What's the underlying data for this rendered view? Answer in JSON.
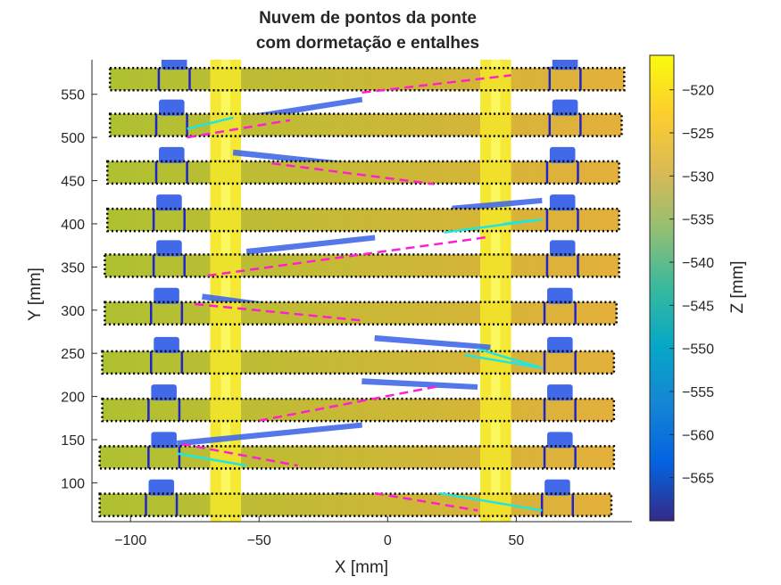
{
  "chart_data": {
    "type": "scatter",
    "title_lines": [
      "Nuvem de pontos da ponte",
      "com dormetação e entalhes"
    ],
    "xlabel": "X  [mm]",
    "ylabel": "Y  [mm]",
    "xlim": [
      -115,
      95
    ],
    "ylim": [
      55,
      590
    ],
    "xticks": [
      -100,
      -50,
      0,
      50
    ],
    "yticks": [
      100,
      150,
      200,
      250,
      300,
      350,
      400,
      450,
      500,
      550
    ],
    "colorbar": {
      "label": "Z  [mm]",
      "range": [
        -570,
        -516
      ],
      "ticks": [
        -520,
        -525,
        -530,
        -535,
        -540,
        -545,
        -550,
        -555,
        -560,
        -565
      ],
      "colormap": [
        "#352a87",
        "#0363e1",
        "#1485d4",
        "#06a7c6",
        "#38b99e",
        "#92bf73",
        "#d9ba56",
        "#fcce2e",
        "#f9fb0e"
      ]
    },
    "colors": {
      "sleeper_low": "#aec131",
      "sleeper_high": "#e3b03b",
      "rail": "#f4e82a",
      "notch": "#4169e8",
      "notch_line": "#1f25c8",
      "sleeper_outline": "#000000",
      "dashed_line": "#ff1fd2",
      "cyan_line": "#1ee6e0"
    },
    "sleepers": [
      {
        "y": 75,
        "x0": -112,
        "x1": 87,
        "notch_left": [
          -94,
          -82
        ],
        "notch_right": [
          60,
          72
        ]
      },
      {
        "y": 130,
        "x0": -112,
        "x1": 88,
        "notch_left": [
          -93,
          -81
        ],
        "notch_right": [
          61,
          73
        ]
      },
      {
        "y": 185,
        "x0": -111,
        "x1": 88,
        "notch_left": [
          -93,
          -81
        ],
        "notch_right": [
          61,
          73
        ]
      },
      {
        "y": 240,
        "x0": -111,
        "x1": 88,
        "notch_left": [
          -92,
          -80
        ],
        "notch_right": [
          61,
          73
        ]
      },
      {
        "y": 297,
        "x0": -110,
        "x1": 89,
        "notch_left": [
          -92,
          -80
        ],
        "notch_right": [
          61,
          73
        ]
      },
      {
        "y": 352,
        "x0": -110,
        "x1": 90,
        "notch_left": [
          -91,
          -79
        ],
        "notch_right": [
          62,
          74
        ]
      },
      {
        "y": 405,
        "x0": -109,
        "x1": 90,
        "notch_left": [
          -91,
          -79
        ],
        "notch_right": [
          62,
          74
        ]
      },
      {
        "y": 460,
        "x0": -109,
        "x1": 90,
        "notch_left": [
          -90,
          -78
        ],
        "notch_right": [
          62,
          74
        ]
      },
      {
        "y": 515,
        "x0": -108,
        "x1": 91,
        "notch_left": [
          -90,
          -78
        ],
        "notch_right": [
          63,
          75
        ]
      },
      {
        "y": 568,
        "x0": -108,
        "x1": 92,
        "notch_left": [
          -89,
          -77
        ],
        "notch_right": [
          63,
          75
        ]
      }
    ],
    "rails": [
      {
        "x_center": -63,
        "width": 12
      },
      {
        "x_center": 42,
        "width": 12
      }
    ],
    "dashed_segments": [
      [
        [
          -5,
          88
        ],
        [
          35,
          68
        ]
      ],
      [
        [
          -80,
          145
        ],
        [
          -35,
          120
        ]
      ],
      [
        [
          -50,
          172
        ],
        [
          20,
          212
        ]
      ],
      [
        [
          -75,
          307
        ],
        [
          -10,
          288
        ]
      ],
      [
        [
          -70,
          340
        ],
        [
          40,
          385
        ]
      ],
      [
        [
          -45,
          470
        ],
        [
          18,
          446
        ]
      ],
      [
        [
          -78,
          500
        ],
        [
          -38,
          520
        ]
      ],
      [
        [
          -10,
          552
        ],
        [
          48,
          572
        ]
      ]
    ],
    "cyan_segments": [
      [
        [
          20,
          88
        ],
        [
          60,
          68
        ]
      ],
      [
        [
          -82,
          134
        ],
        [
          -55,
          120
        ]
      ],
      [
        [
          30,
          248
        ],
        [
          60,
          233
        ],
        [
          35,
          255
        ]
      ],
      [
        [
          22,
          390
        ],
        [
          60,
          405
        ],
        [
          45,
          400
        ]
      ],
      [
        [
          -78,
          510
        ],
        [
          -60,
          523
        ]
      ]
    ],
    "scatter_clusters": [
      [
        [
          -20,
          88
        ],
        [
          20,
          75
        ]
      ],
      [
        [
          -82,
          148
        ],
        [
          -10,
          168
        ]
      ],
      [
        [
          -10,
          220
        ],
        [
          35,
          212
        ]
      ],
      [
        [
          -5,
          270
        ],
        [
          40,
          258
        ]
      ],
      [
        [
          -72,
          318
        ],
        [
          -25,
          298
        ]
      ],
      [
        [
          -55,
          370
        ],
        [
          -5,
          385
        ]
      ],
      [
        [
          25,
          420
        ],
        [
          60,
          428
        ]
      ],
      [
        [
          -60,
          485
        ],
        [
          -10,
          468
        ]
      ],
      [
        [
          -55,
          525
        ],
        [
          -10,
          545
        ]
      ],
      [
        [
          50,
          575
        ],
        [
          68,
          582
        ]
      ]
    ]
  }
}
